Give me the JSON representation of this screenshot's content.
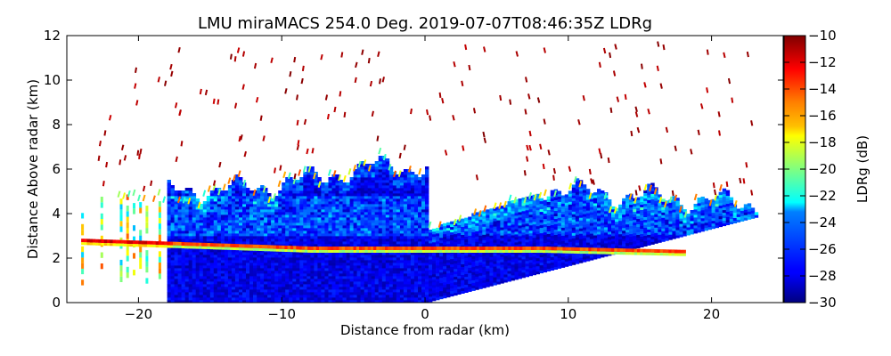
{
  "chart_data": {
    "type": "heatmap",
    "title": "LMU miraMACS 254.0 Deg. 2019-07-07T08:46:35Z  LDRg",
    "xlabel": "Distance from radar (km)",
    "ylabel": "Distance Above radar  (km)",
    "xlim": [
      -25,
      25
    ],
    "ylim": [
      0,
      12
    ],
    "x_ticks": [
      -20,
      -10,
      0,
      10,
      20
    ],
    "y_ticks": [
      0,
      2,
      4,
      6,
      8,
      10,
      12
    ],
    "x_tick_labels": [
      "−20",
      "−10",
      "0",
      "10",
      "20"
    ],
    "y_tick_labels": [
      "0",
      "2",
      "4",
      "6",
      "8",
      "10",
      "12"
    ],
    "colorbar": {
      "label": "LDRg (dB)",
      "range": [
        -30,
        -10
      ],
      "ticks": [
        -30,
        -28,
        -26,
        -24,
        -22,
        -20,
        -18,
        -16,
        -14,
        -12,
        -10
      ],
      "tick_labels": [
        "−30",
        "−28",
        "−26",
        "−24",
        "−22",
        "−20",
        "−18",
        "−16",
        "−14",
        "−12",
        "−10"
      ],
      "colormap": "jet"
    },
    "features": {
      "cloud_base_km": 0.0,
      "cloud_top_km": 6.0,
      "melting_layer_km": 2.4,
      "melting_layer_ldr_db": -14,
      "bulk_ldr_db": -28,
      "scan_left_edge_km": -24,
      "scan_right_edge_km": 23.5,
      "right_edge_top_km": 4.6,
      "left_edge_top_km": 4.8,
      "speckle_top_km": 11.8,
      "speckle_ldr_db": -10
    }
  }
}
